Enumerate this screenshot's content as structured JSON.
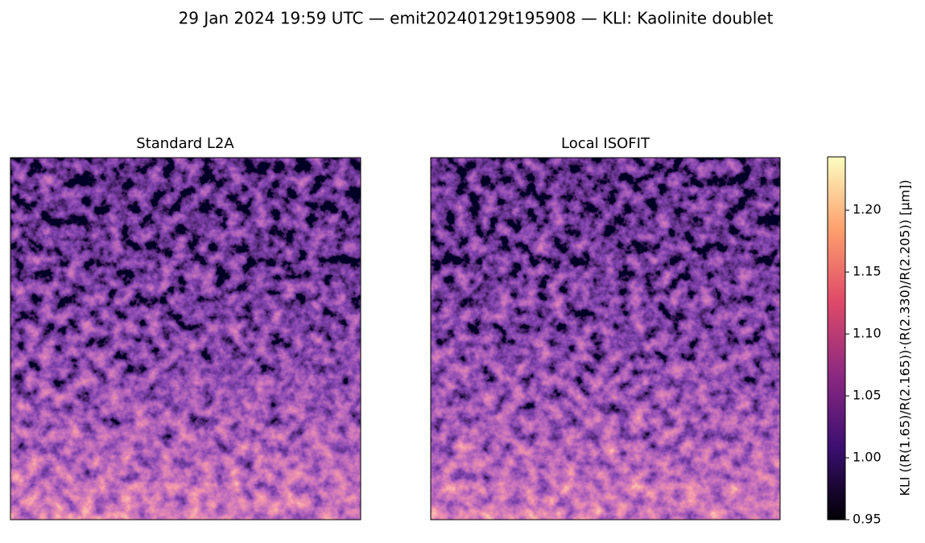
{
  "chart_data": {
    "type": "image",
    "title": "29 Jan 2024 19:59 UTC — emit20240129t195908 — KLI: Kaolinite doublet",
    "panels": [
      {
        "title": "Standard L2A"
      },
      {
        "title": "Local ISOFIT"
      }
    ],
    "colorbar": {
      "label": "KLI  ((R(1.65)/R(2.165))·(R(2.330)/R(2.205))  [µm])",
      "colormap": "magma",
      "lim": [
        0.95,
        1.243
      ],
      "ticks": [
        0.95,
        {
          "value": 1.0,
          "label": "1.00"
        },
        1.05,
        {
          "value": 1.1,
          "label": "1.10"
        },
        1.15,
        {
          "value": 1.2,
          "label": "1.20"
        }
      ]
    }
  }
}
